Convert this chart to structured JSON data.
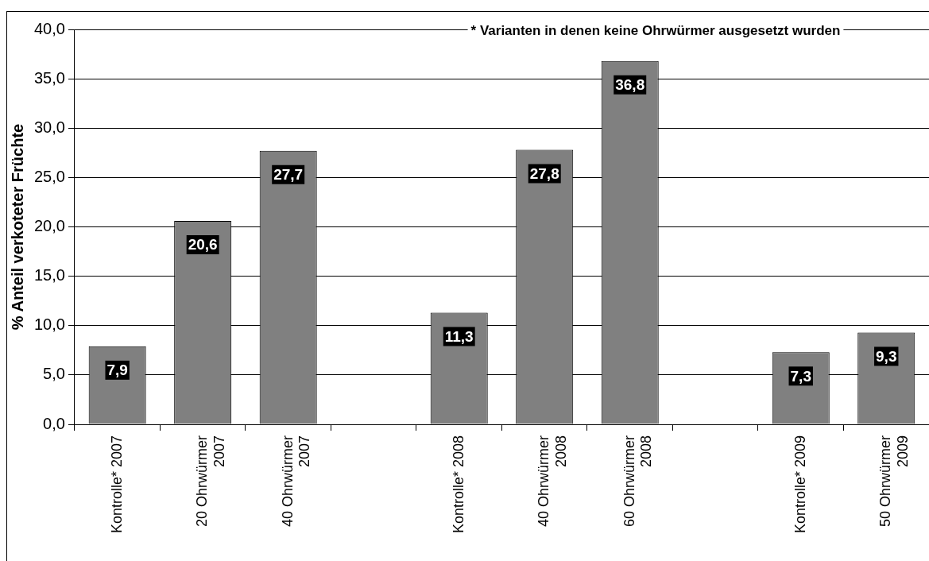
{
  "chart_data": {
    "type": "bar",
    "categories": [
      "Kontrolle* 2007",
      "20 Ohrwürmer\n2007",
      "40 Ohrwürmer\n2007",
      null,
      "Kontrolle* 2008",
      "40 Ohrwürmer\n2008",
      "60 Ohrwürmer\n2008",
      null,
      "Kontrolle* 2009",
      "50 Ohrwürmer\n2009"
    ],
    "values": [
      7.9,
      20.6,
      27.7,
      null,
      11.3,
      27.8,
      36.8,
      null,
      7.3,
      9.3
    ],
    "value_labels": [
      "7,9",
      "20,6",
      "27,7",
      null,
      "11,3",
      "27,8",
      "36,8",
      null,
      "7,3",
      "9,3"
    ],
    "color": "#808080",
    "ylabel": "% Anteil verkoteter Früchte",
    "annotations": [
      "* Varianten in denen keine Ohrwürmer ausgesetzt wurden"
    ],
    "ylim": [
      0,
      40
    ],
    "yticks": [
      {
        "value": 0,
        "label": "0,0"
      },
      {
        "value": 5,
        "label": "5,0"
      },
      {
        "value": 10,
        "label": "10,0"
      },
      {
        "value": 15,
        "label": "15,0"
      },
      {
        "value": 20,
        "label": "20,0"
      },
      {
        "value": 25,
        "label": "25,0"
      },
      {
        "value": 30,
        "label": "30,0"
      },
      {
        "value": 35,
        "label": "35,0"
      },
      {
        "value": 40,
        "label": "40,0"
      }
    ],
    "grid": "y"
  }
}
